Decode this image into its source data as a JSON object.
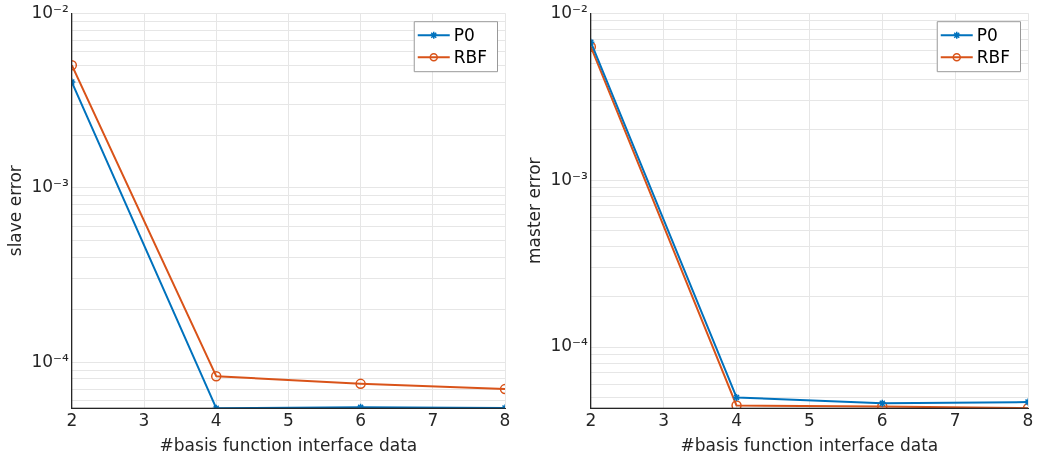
{
  "chart_data": [
    {
      "type": "line",
      "xlabel": "#basis function interface data",
      "ylabel": "slave error",
      "x": [
        2,
        4,
        6,
        8
      ],
      "series": [
        {
          "name": "P0",
          "color": "#0072bd",
          "marker": "cross",
          "values": [
            0.00403,
            5.44e-05,
            5.5e-05,
            5.45e-05
          ]
        },
        {
          "name": "RBF",
          "color": "#d95319",
          "marker": "circle",
          "values": [
            0.00503,
            8.3e-05,
            7.5e-05,
            7e-05
          ]
        }
      ],
      "log": "y",
      "xlim": [
        2,
        8
      ],
      "xticks": [
        2,
        3,
        4,
        5,
        6,
        7,
        8
      ],
      "ylim": [
        5.44e-05,
        0.01
      ],
      "yticks": [
        {
          "value": 6e-05,
          "label": null
        },
        {
          "value": 7e-05,
          "label": null
        },
        {
          "value": 8e-05,
          "label": null
        },
        {
          "value": 9e-05,
          "label": null
        },
        {
          "value": 0.0001,
          "label": "10⁻⁴"
        },
        {
          "value": 0.0002,
          "label": null
        },
        {
          "value": 0.0003,
          "label": null
        },
        {
          "value": 0.0004,
          "label": null
        },
        {
          "value": 0.0005,
          "label": null
        },
        {
          "value": 0.0006,
          "label": null
        },
        {
          "value": 0.0007,
          "label": null
        },
        {
          "value": 0.0008,
          "label": null
        },
        {
          "value": 0.0009,
          "label": null
        },
        {
          "value": 0.001,
          "label": "10⁻³"
        },
        {
          "value": 0.002,
          "label": null
        },
        {
          "value": 0.003,
          "label": null
        },
        {
          "value": 0.004,
          "label": null
        },
        {
          "value": 0.005,
          "label": null
        },
        {
          "value": 0.006,
          "label": null
        },
        {
          "value": 0.007,
          "label": null
        },
        {
          "value": 0.008,
          "label": null
        },
        {
          "value": 0.009,
          "label": null
        },
        {
          "value": 0.01,
          "label": "10⁻²"
        }
      ],
      "grid": true,
      "legend": "top right",
      "line_style": "solid"
    },
    {
      "type": "line",
      "xlabel": "#basis function interface data",
      "ylabel": "master error",
      "x": [
        2,
        4,
        6,
        8
      ],
      "series": [
        {
          "name": "P0",
          "color": "#0072bd",
          "marker": "cross",
          "values": [
            0.0067,
            4.99e-05,
            4.6e-05,
            4.68e-05
          ]
        },
        {
          "name": "RBF",
          "color": "#d95319",
          "marker": "circle",
          "values": [
            0.0063,
            4.46e-05,
            4.4e-05,
            4.3e-05
          ]
        }
      ],
      "log": "y",
      "xlim": [
        2,
        8
      ],
      "xticks": [
        2,
        3,
        4,
        5,
        6,
        7,
        8
      ],
      "ylim": [
        4.3e-05,
        0.01
      ],
      "yticks": [
        {
          "value": 5e-05,
          "label": null
        },
        {
          "value": 6e-05,
          "label": null
        },
        {
          "value": 7e-05,
          "label": null
        },
        {
          "value": 8e-05,
          "label": null
        },
        {
          "value": 9e-05,
          "label": null
        },
        {
          "value": 0.0001,
          "label": "10⁻⁴"
        },
        {
          "value": 0.0002,
          "label": null
        },
        {
          "value": 0.0003,
          "label": null
        },
        {
          "value": 0.0004,
          "label": null
        },
        {
          "value": 0.0005,
          "label": null
        },
        {
          "value": 0.0006,
          "label": null
        },
        {
          "value": 0.0007,
          "label": null
        },
        {
          "value": 0.0008,
          "label": null
        },
        {
          "value": 0.0009,
          "label": null
        },
        {
          "value": 0.001,
          "label": "10⁻³"
        },
        {
          "value": 0.002,
          "label": null
        },
        {
          "value": 0.003,
          "label": null
        },
        {
          "value": 0.004,
          "label": null
        },
        {
          "value": 0.005,
          "label": null
        },
        {
          "value": 0.006,
          "label": null
        },
        {
          "value": 0.007,
          "label": null
        },
        {
          "value": 0.008,
          "label": null
        },
        {
          "value": 0.009,
          "label": null
        },
        {
          "value": 0.01,
          "label": "10⁻²"
        }
      ],
      "grid": true,
      "legend": "top right",
      "line_style": "solid"
    }
  ]
}
